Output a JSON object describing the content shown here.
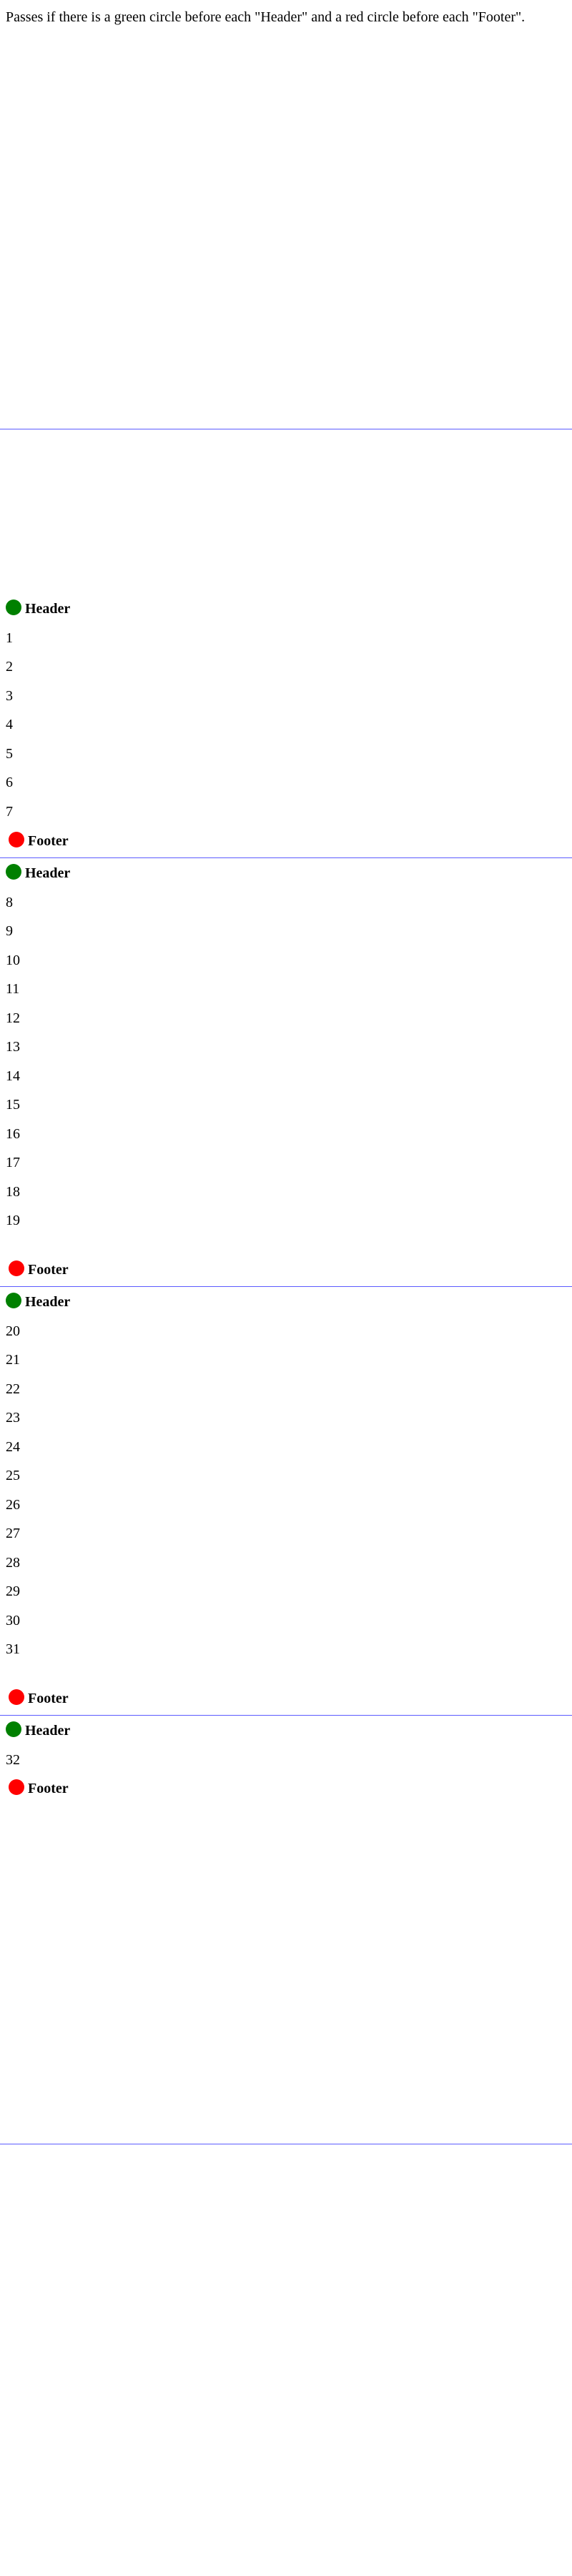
{
  "description": "Passes if there is a green circle before each \"Header\" and a red circle before each \"Footer\".",
  "colors": {
    "header_marker": "#008000",
    "footer_marker": "#ff0000",
    "page_rule": "#5b5bff"
  },
  "pages": [
    {
      "header": "Header",
      "items": [
        "1",
        "2",
        "3",
        "4",
        "5",
        "6",
        "7"
      ],
      "footer": "Footer"
    },
    {
      "header": "Header",
      "items": [
        "8",
        "9",
        "10",
        "11",
        "12",
        "13",
        "14",
        "15",
        "16",
        "17",
        "18",
        "19"
      ],
      "footer": "Footer"
    },
    {
      "header": "Header",
      "items": [
        "20",
        "21",
        "22",
        "23",
        "24",
        "25",
        "26",
        "27",
        "28",
        "29",
        "30",
        "31"
      ],
      "footer": "Footer"
    },
    {
      "header": "Header",
      "items": [
        "32"
      ],
      "footer": "Footer"
    }
  ]
}
